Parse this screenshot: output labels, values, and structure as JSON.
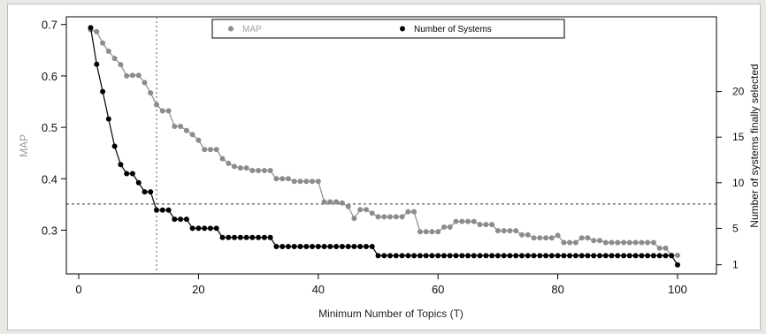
{
  "chart_data": {
    "type": "scatter",
    "title": "",
    "xlabel": "Minimum Number of Topics (T)",
    "ylabel_left": "MAP",
    "ylabel_right": "Number of systems finally selected",
    "xlim": [
      0,
      100
    ],
    "ylim_left": [
      0.215,
      0.715
    ],
    "ylim_right": [
      0,
      28.2
    ],
    "x_ticks": [
      "0",
      "20",
      "40",
      "60",
      "80",
      "100"
    ],
    "x_tick_values": [
      0,
      20,
      40,
      60,
      80,
      100
    ],
    "y_left_ticks": [
      "0.3",
      "0.4",
      "0.5",
      "0.6",
      "0.7"
    ],
    "y_left_tick_values": [
      0.3,
      0.4,
      0.5,
      0.6,
      0.7
    ],
    "y_right_ticks": [
      "1",
      "5",
      "10",
      "15",
      "20"
    ],
    "y_right_tick_values": [
      1,
      5,
      10,
      15,
      20
    ],
    "ref_vline_x": 13,
    "ref_hline_map": 0.351,
    "grid": false,
    "legend_position": "top-center",
    "legend": [
      {
        "label": "MAP",
        "color": "#8c8c8c",
        "text_color": "#a0a0a0"
      },
      {
        "label": "Number of Systems",
        "color": "#000000",
        "text_color": "#000000"
      }
    ],
    "x": [
      2,
      3,
      4,
      5,
      6,
      7,
      8,
      9,
      10,
      11,
      12,
      13,
      14,
      15,
      16,
      17,
      18,
      19,
      20,
      21,
      22,
      23,
      24,
      25,
      26,
      27,
      28,
      29,
      30,
      31,
      32,
      33,
      34,
      35,
      36,
      37,
      38,
      39,
      40,
      41,
      42,
      43,
      44,
      45,
      46,
      47,
      48,
      49,
      50,
      51,
      52,
      53,
      54,
      55,
      56,
      57,
      58,
      59,
      60,
      61,
      62,
      63,
      64,
      65,
      66,
      67,
      68,
      69,
      70,
      71,
      72,
      73,
      74,
      75,
      76,
      77,
      78,
      79,
      80,
      81,
      82,
      83,
      84,
      85,
      86,
      87,
      88,
      89,
      90,
      91,
      92,
      93,
      94,
      95,
      96,
      97,
      98,
      99,
      100
    ],
    "series": [
      {
        "name": "MAP",
        "axis": "left",
        "color": "#8c8c8c",
        "values": [
          0.69,
          0.686,
          0.664,
          0.648,
          0.634,
          0.622,
          0.6,
          0.601,
          0.601,
          0.587,
          0.567,
          0.544,
          0.532,
          0.532,
          0.502,
          0.502,
          0.494,
          0.486,
          0.475,
          0.457,
          0.457,
          0.457,
          0.439,
          0.43,
          0.424,
          0.421,
          0.421,
          0.416,
          0.416,
          0.416,
          0.416,
          0.4,
          0.4,
          0.4,
          0.395,
          0.395,
          0.395,
          0.395,
          0.395,
          0.355,
          0.355,
          0.355,
          0.353,
          0.346,
          0.323,
          0.34,
          0.34,
          0.333,
          0.326,
          0.326,
          0.326,
          0.326,
          0.326,
          0.336,
          0.336,
          0.297,
          0.297,
          0.297,
          0.297,
          0.306,
          0.306,
          0.317,
          0.317,
          0.317,
          0.317,
          0.311,
          0.311,
          0.311,
          0.299,
          0.299,
          0.299,
          0.299,
          0.291,
          0.291,
          0.285,
          0.285,
          0.285,
          0.285,
          0.29,
          0.276,
          0.276,
          0.276,
          0.285,
          0.285,
          0.28,
          0.28,
          0.276,
          0.276,
          0.276,
          0.276,
          0.276,
          0.276,
          0.276,
          0.276,
          0.276,
          0.265,
          0.265,
          0.251,
          0.251
        ]
      },
      {
        "name": "Number of Systems",
        "axis": "right",
        "color": "#000000",
        "values": [
          27,
          23,
          20,
          17,
          14,
          12,
          11,
          11,
          10,
          9,
          9,
          7,
          7,
          7,
          6,
          6,
          6,
          5,
          5,
          5,
          5,
          5,
          4,
          4,
          4,
          4,
          4,
          4,
          4,
          4,
          4,
          3,
          3,
          3,
          3,
          3,
          3,
          3,
          3,
          3,
          3,
          3,
          3,
          3,
          3,
          3,
          3,
          3,
          2,
          2,
          2,
          2,
          2,
          2,
          2,
          2,
          2,
          2,
          2,
          2,
          2,
          2,
          2,
          2,
          2,
          2,
          2,
          2,
          2,
          2,
          2,
          2,
          2,
          2,
          2,
          2,
          2,
          2,
          2,
          2,
          2,
          2,
          2,
          2,
          2,
          2,
          2,
          2,
          2,
          2,
          2,
          2,
          2,
          2,
          2,
          2,
          2,
          2,
          1
        ]
      }
    ]
  }
}
